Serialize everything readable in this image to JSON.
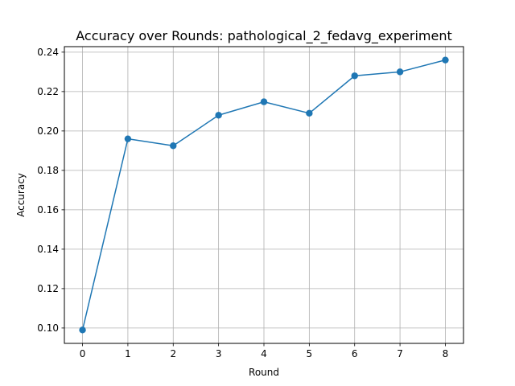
{
  "chart_data": {
    "type": "line",
    "title": "Accuracy over Rounds: pathological_2_fedavg_experiment",
    "xlabel": "Round",
    "ylabel": "Accuracy",
    "x": [
      0,
      1,
      2,
      3,
      4,
      5,
      6,
      7,
      8
    ],
    "series": [
      {
        "values": [
          0.099,
          0.196,
          0.1925,
          0.208,
          0.2148,
          0.209,
          0.228,
          0.23,
          0.236
        ],
        "color": "#1f77b4",
        "marker": "circle"
      }
    ],
    "xticks": [
      "0",
      "1",
      "2",
      "3",
      "4",
      "5",
      "6",
      "7",
      "8"
    ],
    "yticks": [
      "0.10",
      "0.12",
      "0.14",
      "0.16",
      "0.18",
      "0.20",
      "0.22",
      "0.24"
    ],
    "xlim": [
      -0.4,
      8.4
    ],
    "ylim": [
      0.0922,
      0.2428
    ],
    "grid": true,
    "grid_color": "#b0b0b0"
  }
}
